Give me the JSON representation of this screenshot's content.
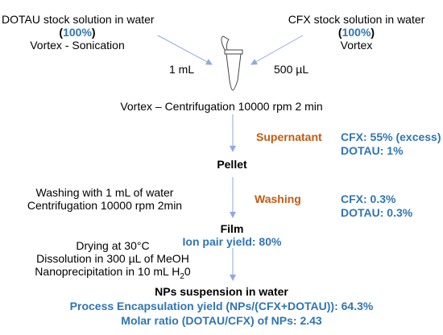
{
  "stock_left": {
    "title": "DOTAU stock solution in water",
    "pct": "100%",
    "method": "Vortex - Sonication",
    "volume": "1 mL"
  },
  "stock_right": {
    "title": "CFX stock solution in water",
    "pct": "100%",
    "method": "Vortex",
    "volume": "500 µL"
  },
  "step_vortex": "Vortex – Centrifugation 10000 rpm 2 min",
  "supernatant": {
    "label": "Supernatant",
    "cfx": "CFX: 55% (excess)",
    "dotau": "DOTAU: 1%"
  },
  "pellet": "Pellet",
  "washing_step": {
    "line1": "Washing with 1 mL of water",
    "line2": "Centrifugation 10000 rpm 2min"
  },
  "washing": {
    "label": "Washing",
    "cfx": "CFX: 0.3%",
    "dotau": "DOTAU: 0.3%"
  },
  "film": {
    "label": "Film",
    "yield": "Ion pair yield: 80%"
  },
  "drying": {
    "line1": "Drying at 30°C",
    "line2": "Dissolution in 300 µL of MeOH",
    "line3_main": "Nanoprecipitation in 10 mL H",
    "line3_sub": "2",
    "line3_tail": "0"
  },
  "nps": {
    "label": "NPs suspension in water",
    "encapsulation": "Process Encapsulation yield (NPs/(CFX+DOTAU)): 64.3%",
    "molar": "Molar ratio (DOTAU/CFX) of NPs: 2.43"
  },
  "colors": {
    "blue": "#2E75B6",
    "orange": "#C55A11",
    "arrow": "#8FAADC"
  }
}
